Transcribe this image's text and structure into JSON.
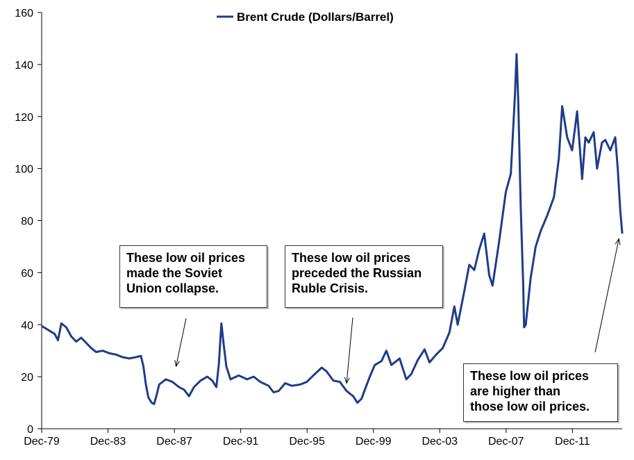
{
  "chart_data": {
    "type": "line",
    "title": "",
    "xlabel": "",
    "ylabel": "",
    "ylim": [
      0,
      160
    ],
    "yticks": [
      0,
      20,
      40,
      60,
      80,
      100,
      120,
      140,
      160
    ],
    "xlim": [
      1979.917,
      2014.917
    ],
    "xtick_values": [
      1979.917,
      1983.917,
      1987.917,
      1991.917,
      1995.917,
      1999.917,
      2003.917,
      2007.917,
      2011.917
    ],
    "xtick_labels": [
      "Dec-79",
      "Dec-83",
      "Dec-87",
      "Dec-91",
      "Dec-95",
      "Dec-99",
      "Dec-03",
      "Dec-07",
      "Dec-11"
    ],
    "grid": false,
    "legend_position": "top-center",
    "series": [
      {
        "name": "Brent Crude (Dollars/Barrel)",
        "color": "#1f3c88",
        "points": [
          [
            1979.92,
            39.5
          ],
          [
            1980.3,
            38.0
          ],
          [
            1980.7,
            36.5
          ],
          [
            1980.9,
            34.0
          ],
          [
            1981.1,
            40.5
          ],
          [
            1981.4,
            39.0
          ],
          [
            1981.7,
            35.5
          ],
          [
            1982.0,
            33.5
          ],
          [
            1982.3,
            35.0
          ],
          [
            1982.6,
            33.0
          ],
          [
            1982.9,
            31.0
          ],
          [
            1983.2,
            29.5
          ],
          [
            1983.6,
            30.0
          ],
          [
            1984.0,
            29.0
          ],
          [
            1984.4,
            28.5
          ],
          [
            1984.8,
            27.5
          ],
          [
            1985.2,
            27.0
          ],
          [
            1985.6,
            27.5
          ],
          [
            1985.9,
            28.0
          ],
          [
            1986.05,
            24.0
          ],
          [
            1986.2,
            17.0
          ],
          [
            1986.35,
            12.0
          ],
          [
            1986.55,
            10.0
          ],
          [
            1986.7,
            9.5
          ],
          [
            1986.85,
            13.0
          ],
          [
            1987.0,
            17.0
          ],
          [
            1987.4,
            19.0
          ],
          [
            1987.8,
            18.0
          ],
          [
            1988.2,
            16.0
          ],
          [
            1988.5,
            15.0
          ],
          [
            1988.8,
            12.5
          ],
          [
            1989.1,
            16.0
          ],
          [
            1989.5,
            18.5
          ],
          [
            1989.9,
            20.0
          ],
          [
            1990.2,
            18.5
          ],
          [
            1990.45,
            16.0
          ],
          [
            1990.6,
            25.0
          ],
          [
            1990.75,
            40.5
          ],
          [
            1990.9,
            32.0
          ],
          [
            1991.05,
            24.0
          ],
          [
            1991.3,
            19.0
          ],
          [
            1991.8,
            20.5
          ],
          [
            1992.3,
            19.0
          ],
          [
            1992.7,
            20.0
          ],
          [
            1993.1,
            18.0
          ],
          [
            1993.6,
            16.5
          ],
          [
            1993.9,
            14.0
          ],
          [
            1994.2,
            14.5
          ],
          [
            1994.6,
            17.5
          ],
          [
            1995.0,
            16.5
          ],
          [
            1995.5,
            17.0
          ],
          [
            1995.9,
            18.0
          ],
          [
            1996.3,
            20.5
          ],
          [
            1996.8,
            23.5
          ],
          [
            1997.1,
            22.0
          ],
          [
            1997.5,
            18.5
          ],
          [
            1997.9,
            18.0
          ],
          [
            1998.3,
            14.5
          ],
          [
            1998.7,
            12.5
          ],
          [
            1998.95,
            10.0
          ],
          [
            1999.2,
            11.5
          ],
          [
            1999.4,
            15.0
          ],
          [
            1999.7,
            20.0
          ],
          [
            2000.0,
            24.5
          ],
          [
            2000.4,
            26.0
          ],
          [
            2000.7,
            30.0
          ],
          [
            2001.0,
            24.5
          ],
          [
            2001.5,
            27.0
          ],
          [
            2001.9,
            19.0
          ],
          [
            2002.2,
            21.0
          ],
          [
            2002.6,
            26.5
          ],
          [
            2003.0,
            30.5
          ],
          [
            2003.3,
            25.5
          ],
          [
            2003.7,
            28.5
          ],
          [
            2004.1,
            31.0
          ],
          [
            2004.5,
            37.0
          ],
          [
            2004.8,
            47.0
          ],
          [
            2005.0,
            40.0
          ],
          [
            2005.4,
            53.0
          ],
          [
            2005.7,
            63.0
          ],
          [
            2006.0,
            61.0
          ],
          [
            2006.3,
            69.0
          ],
          [
            2006.6,
            75.0
          ],
          [
            2006.9,
            59.0
          ],
          [
            2007.1,
            55.0
          ],
          [
            2007.5,
            72.0
          ],
          [
            2007.9,
            91.0
          ],
          [
            2008.2,
            98.0
          ],
          [
            2008.45,
            128.0
          ],
          [
            2008.55,
            144.0
          ],
          [
            2008.65,
            126.0
          ],
          [
            2008.8,
            85.0
          ],
          [
            2008.95,
            55.0
          ],
          [
            2009.0,
            39.0
          ],
          [
            2009.1,
            40.0
          ],
          [
            2009.4,
            58.0
          ],
          [
            2009.7,
            70.0
          ],
          [
            2010.0,
            76.0
          ],
          [
            2010.4,
            82.0
          ],
          [
            2010.8,
            89.0
          ],
          [
            2011.1,
            104.0
          ],
          [
            2011.3,
            124.0
          ],
          [
            2011.6,
            112.0
          ],
          [
            2011.9,
            107.0
          ],
          [
            2012.2,
            122.0
          ],
          [
            2012.5,
            96.0
          ],
          [
            2012.7,
            112.0
          ],
          [
            2012.9,
            110.0
          ],
          [
            2013.2,
            114.0
          ],
          [
            2013.4,
            100.0
          ],
          [
            2013.7,
            110.0
          ],
          [
            2013.9,
            111.0
          ],
          [
            2014.2,
            107.0
          ],
          [
            2014.5,
            112.0
          ],
          [
            2014.65,
            100.0
          ],
          [
            2014.8,
            84.0
          ],
          [
            2014.88,
            78.0
          ],
          [
            2014.92,
            75.0
          ]
        ]
      }
    ],
    "annotations": [
      {
        "lines": [
          "These low oil prices",
          "made the Soviet",
          "Union collapse."
        ],
        "arrow_target": [
          1988.02,
          24.0
        ]
      },
      {
        "lines": [
          "These low oil prices",
          "preceded the Russian",
          "Ruble Crisis."
        ],
        "arrow_target": [
          1998.3,
          17.5
        ]
      },
      {
        "lines": [
          "These low oil prices",
          "are higher than",
          "those low oil prices."
        ],
        "arrow_target": [
          2014.72,
          73.0
        ]
      }
    ]
  }
}
